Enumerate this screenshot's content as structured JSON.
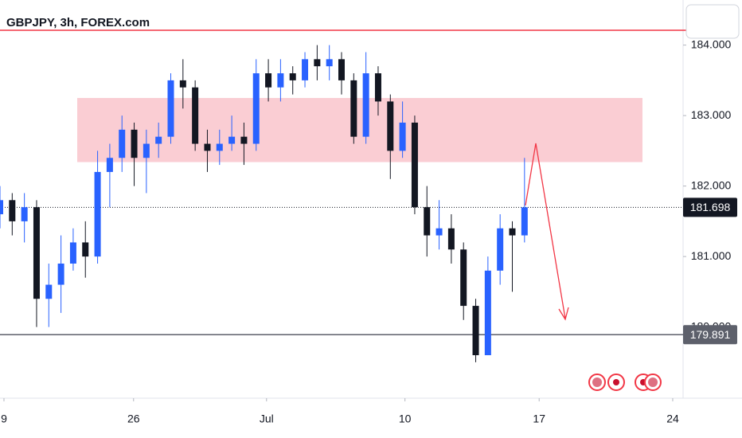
{
  "chart_data": {
    "type": "candlestick",
    "title": "GBPJPY, 3h, FOREX.com",
    "x": [
      0,
      2,
      4,
      6,
      8,
      10,
      12,
      14,
      16,
      18,
      20,
      22,
      24,
      26,
      28,
      30,
      32,
      34,
      36,
      38,
      40,
      42,
      44,
      46,
      48,
      50,
      52,
      54,
      56,
      58,
      60,
      62,
      64,
      66,
      68,
      70,
      72,
      74,
      76,
      78,
      80,
      82,
      84,
      86
    ],
    "open": [
      181.6,
      181.8,
      181.5,
      181.7,
      180.4,
      180.6,
      180.9,
      181.2,
      181.0,
      182.2,
      182.4,
      182.8,
      182.4,
      182.6,
      182.7,
      183.5,
      183.4,
      182.6,
      182.5,
      182.6,
      182.7,
      182.6,
      183.6,
      183.4,
      183.6,
      183.5,
      183.8,
      183.7,
      183.8,
      183.5,
      182.7,
      183.6,
      183.2,
      182.5,
      182.9,
      181.7,
      181.3,
      181.4,
      181.1,
      180.3,
      179.6,
      180.8,
      181.4,
      181.3
    ],
    "high": [
      182.0,
      181.9,
      181.9,
      181.8,
      180.9,
      181.3,
      181.4,
      181.5,
      182.5,
      182.6,
      183.0,
      182.9,
      182.8,
      182.9,
      183.6,
      183.8,
      183.5,
      182.8,
      182.8,
      183.0,
      182.9,
      183.8,
      183.8,
      183.8,
      183.7,
      183.9,
      184.0,
      184.0,
      183.9,
      183.6,
      183.9,
      183.7,
      183.3,
      183.2,
      183.0,
      182.0,
      181.8,
      181.6,
      181.2,
      180.4,
      181.0,
      181.6,
      181.5,
      182.4
    ],
    "low": [
      181.4,
      181.3,
      181.2,
      180.0,
      180.0,
      180.2,
      180.8,
      180.7,
      180.9,
      181.7,
      182.2,
      182.0,
      181.9,
      182.4,
      182.6,
      183.1,
      182.5,
      182.2,
      182.3,
      182.5,
      182.3,
      182.5,
      183.2,
      183.2,
      183.3,
      183.4,
      183.5,
      183.5,
      183.3,
      182.6,
      182.6,
      183.0,
      182.1,
      182.4,
      181.6,
      181.0,
      181.1,
      180.9,
      180.1,
      179.5,
      179.6,
      180.6,
      180.5,
      181.2
    ],
    "close": [
      181.8,
      181.5,
      181.7,
      180.4,
      180.6,
      180.9,
      181.2,
      181.0,
      182.2,
      182.4,
      182.8,
      182.4,
      182.6,
      182.7,
      183.5,
      183.4,
      182.6,
      182.5,
      182.6,
      182.7,
      182.6,
      183.6,
      183.4,
      183.6,
      183.5,
      183.8,
      183.7,
      183.8,
      183.5,
      182.7,
      183.6,
      183.2,
      182.5,
      182.9,
      181.7,
      181.3,
      181.4,
      181.1,
      180.3,
      179.6,
      180.8,
      181.4,
      181.3,
      181.698
    ],
    "up_color": "#2962ff",
    "down_color": "#131722",
    "xlim": [
      0,
      112
    ],
    "ylim": [
      178.99,
      184.64
    ],
    "xticks": [
      {
        "value": 0.65,
        "label": "9"
      },
      {
        "value": 21.9,
        "label": "26"
      },
      {
        "value": 43.7,
        "label": "Jul"
      },
      {
        "value": 66.4,
        "label": "10"
      },
      {
        "value": 88.4,
        "label": "17"
      },
      {
        "value": 110.3,
        "label": "24"
      }
    ],
    "yticks": [
      {
        "value": 180,
        "label": "180.000"
      },
      {
        "value": 181,
        "label": "181.000"
      },
      {
        "value": 182,
        "label": "182.000"
      },
      {
        "value": 183,
        "label": "183.000"
      },
      {
        "value": 184,
        "label": "184.000"
      }
    ],
    "last_price": 181.698,
    "support_level": 179.891,
    "resistance_line": 184.21,
    "zone": [
      182.34,
      183.25
    ],
    "zone_color": "#f9c4cb"
  }
}
